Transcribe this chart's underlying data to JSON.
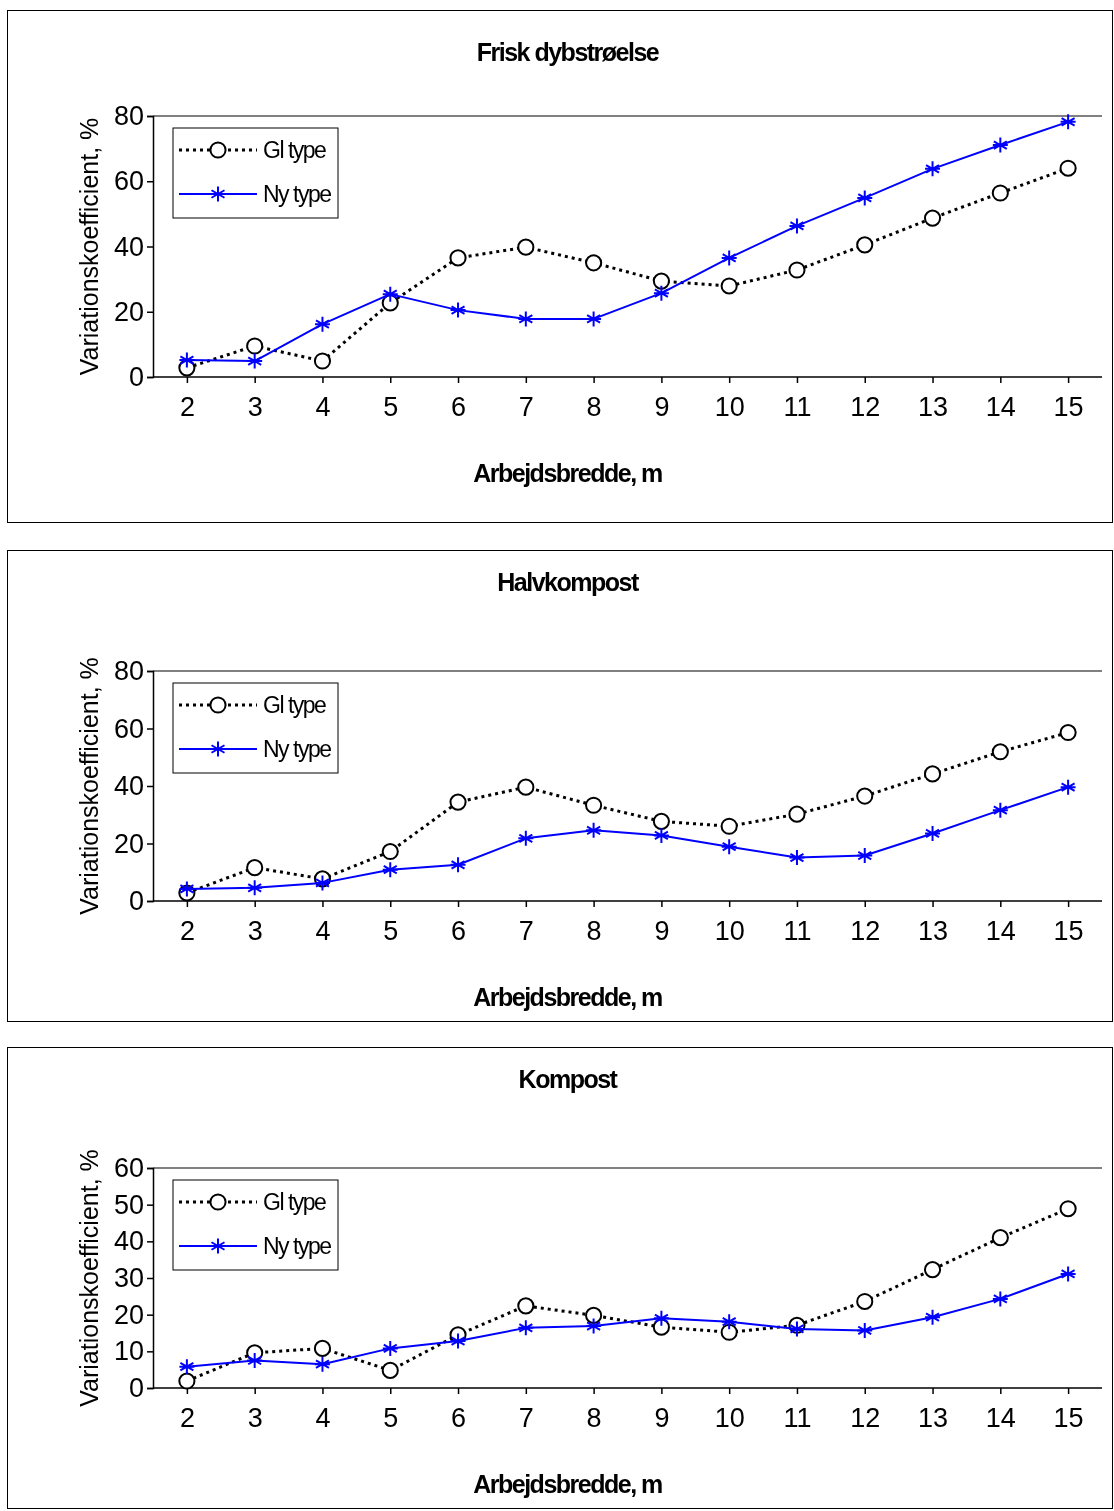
{
  "chart_data": [
    {
      "type": "line",
      "title": "Frisk dybstrøelse",
      "xlabel": "Arbejdsbredde, m",
      "ylabel": "Variationskoefficient, %",
      "categories": [
        "2",
        "3",
        "4",
        "5",
        "6",
        "7",
        "8",
        "9",
        "10",
        "11",
        "12",
        "13",
        "14",
        "15"
      ],
      "series": [
        {
          "name": "Gl type",
          "color": "#000000",
          "marker": "circle",
          "line_style": "dotted",
          "values": [
            2.8,
            9.5,
            4.9,
            22.7,
            36.5,
            39.8,
            35,
            29.4,
            27.9,
            32.8,
            40.5,
            48.7,
            56.4,
            64
          ]
        },
        {
          "name": "Ny type",
          "color": "#0000ff",
          "marker": "cross",
          "line_style": "solid",
          "values": [
            5.2,
            4.9,
            16.2,
            25.4,
            20.5,
            17.8,
            17.8,
            25.7,
            36.5,
            46.3,
            54.9,
            63.8,
            71.1,
            78.2
          ]
        }
      ],
      "ylim": [
        0,
        80
      ],
      "yticks": [
        0,
        20,
        40,
        60,
        80
      ],
      "legend": "top left",
      "grid": false
    },
    {
      "type": "line",
      "title": "Halvkompost",
      "xlabel": "Arbejdsbredde, m",
      "ylabel": "Variationskoefficient, %",
      "categories": [
        "2",
        "3",
        "4",
        "5",
        "6",
        "7",
        "8",
        "9",
        "10",
        "11",
        "12",
        "13",
        "14",
        "15"
      ],
      "series": [
        {
          "name": "Gl type",
          "color": "#000000",
          "marker": "circle",
          "line_style": "dotted",
          "values": [
            2.8,
            11.6,
            7.7,
            17.2,
            34.4,
            39.6,
            33.3,
            27.7,
            26,
            30.2,
            36.5,
            44.2,
            51.9,
            58.6
          ]
        },
        {
          "name": "Ny type",
          "color": "#0000ff",
          "marker": "cross",
          "line_style": "solid",
          "values": [
            4.2,
            4.6,
            6.3,
            10.9,
            12.6,
            21.8,
            24.6,
            22.8,
            18.9,
            15.1,
            15.8,
            23.5,
            31.6,
            39.6
          ]
        }
      ],
      "ylim": [
        0,
        80
      ],
      "yticks": [
        0,
        20,
        40,
        60,
        80
      ],
      "legend": "top left",
      "grid": false
    },
    {
      "type": "line",
      "title": "Kompost",
      "xlabel": "Arbejdsbredde, m",
      "ylabel": "Variationskoefficient, %",
      "categories": [
        "2",
        "3",
        "4",
        "5",
        "6",
        "7",
        "8",
        "9",
        "10",
        "11",
        "12",
        "13",
        "14",
        "15"
      ],
      "series": [
        {
          "name": "Gl type",
          "color": "#000000",
          "marker": "circle",
          "line_style": "dotted",
          "values": [
            1.9,
            9.6,
            10.8,
            4.8,
            14.5,
            22.4,
            19.8,
            16.6,
            15.2,
            17.1,
            23.6,
            32.3,
            41,
            48.9
          ]
        },
        {
          "name": "Ny type",
          "color": "#0000ff",
          "marker": "cross",
          "line_style": "solid",
          "values": [
            5.8,
            7.5,
            6.5,
            10.8,
            12.8,
            16.4,
            16.9,
            19,
            18.1,
            16.1,
            15.7,
            19.3,
            24.3,
            31.1
          ]
        }
      ],
      "ylim": [
        0,
        60
      ],
      "yticks": [
        0,
        10,
        20,
        30,
        40,
        50,
        60
      ],
      "legend": "top left",
      "grid": false
    }
  ]
}
